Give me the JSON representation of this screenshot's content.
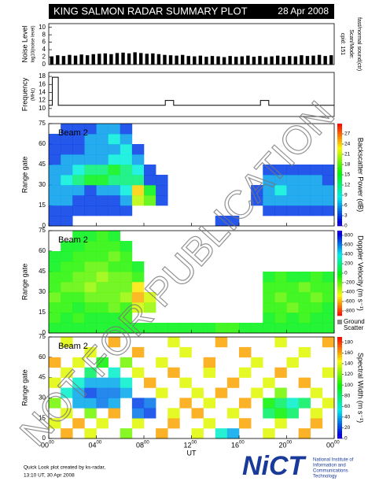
{
  "header": {
    "title": "KING SALMON RADAR SUMMARY PLOT",
    "date": "28 Apr 2008"
  },
  "chart_data": [
    {
      "type": "bar",
      "ylabel": "Noise Level",
      "ylabel_sub": "log10(noise level)",
      "right_labels": [
        "Scan/Mode:",
        "fast/normal sound(ctr)",
        "cpid: 151"
      ],
      "color": "#000000",
      "xlim": [
        0,
        24
      ],
      "ylim": [
        0,
        11
      ],
      "yticks": [
        0,
        2,
        4,
        6,
        8,
        10
      ],
      "x": [
        0.25,
        0.75,
        1.25,
        1.75,
        2.25,
        2.75,
        3.25,
        3.75,
        4.25,
        4.75,
        5.25,
        5.75,
        6.25,
        6.75,
        7.25,
        7.75,
        8.25,
        8.75,
        9.25,
        9.75,
        10.25,
        10.75,
        11.25,
        11.75,
        12.25,
        12.75,
        13.25,
        13.75,
        14.25,
        14.75,
        15.25,
        15.75,
        16.25,
        16.75,
        17.25,
        17.75,
        18.25,
        18.75,
        19.25,
        19.75,
        20.25,
        20.75,
        21.25,
        21.75,
        22.25,
        22.75,
        23.25,
        23.75
      ],
      "values": [
        2.2,
        2.5,
        2.3,
        2.6,
        2.4,
        2.7,
        2.5,
        2.8,
        2.9,
        3.0,
        2.8,
        3.1,
        3.2,
        3.0,
        3.3,
        3.1,
        2.9,
        3.0,
        2.8,
        2.6,
        2.5,
        2.4,
        2.6,
        2.3,
        2.2,
        2.4,
        2.1,
        2.3,
        2.2,
        2.0,
        2.3,
        2.1,
        2.2,
        2.4,
        2.1,
        2.3,
        2.0,
        2.2,
        2.4,
        2.1,
        2.3,
        2.2,
        2.5,
        2.3,
        2.4,
        2.6,
        2.3,
        2.5
      ]
    },
    {
      "type": "line",
      "ylabel": "Frequency",
      "ylabel_sub": "(MHz)",
      "color": "#000000",
      "xlim": [
        0,
        24
      ],
      "ylim": [
        8,
        19
      ],
      "yticks": [
        10,
        12,
        14,
        16,
        18
      ],
      "x": [
        0,
        0.3,
        0.3,
        0.8,
        0.8,
        9.8,
        9.8,
        10.5,
        10.5,
        17.8,
        17.8,
        18.5,
        18.5,
        24
      ],
      "values": [
        10.8,
        10.8,
        17.8,
        17.8,
        10.8,
        10.8,
        12,
        12,
        10.8,
        10.8,
        12,
        12,
        10.8,
        10.8
      ]
    },
    {
      "type": "heatmap",
      "label": "Beam 2",
      "ylabel": "Range gate",
      "xlim": [
        0,
        24
      ],
      "ylim": [
        0,
        75
      ],
      "yticks": [
        0,
        15,
        30,
        45,
        60,
        75
      ],
      "xticks": [
        0,
        4,
        8,
        12,
        16,
        20,
        24
      ],
      "x": [
        0,
        1,
        2,
        3,
        4,
        5,
        6,
        7,
        8,
        9,
        10,
        11,
        12,
        13,
        14,
        15,
        16,
        17,
        18,
        19,
        20,
        21,
        22,
        23
      ],
      "y": [
        0,
        7.5,
        15,
        22.5,
        30,
        37.5,
        45,
        52.5,
        60,
        67.5
      ],
      "values": [
        [
          3,
          3,
          null,
          null,
          null,
          null,
          null,
          null,
          null,
          null,
          null,
          null,
          null,
          null,
          3,
          3,
          null,
          null,
          null,
          null,
          null,
          null,
          null,
          null
        ],
        [
          3,
          3,
          3,
          3,
          3,
          3,
          3,
          null,
          null,
          null,
          null,
          null,
          null,
          null,
          null,
          null,
          null,
          null,
          3,
          3,
          3,
          3,
          3,
          3
        ],
        [
          6,
          6,
          3,
          3,
          3,
          3,
          6,
          21,
          18,
          3,
          null,
          null,
          null,
          null,
          null,
          null,
          null,
          3,
          6,
          6,
          6,
          6,
          6,
          6
        ],
        [
          6,
          6,
          6,
          3,
          6,
          6,
          9,
          24,
          15,
          3,
          null,
          null,
          null,
          null,
          null,
          null,
          null,
          3,
          6,
          9,
          6,
          6,
          6,
          6
        ],
        [
          6,
          9,
          12,
          15,
          15,
          12,
          12,
          12,
          3,
          3,
          null,
          null,
          null,
          null,
          null,
          null,
          null,
          null,
          6,
          6,
          6,
          6,
          6,
          3
        ],
        [
          6,
          6,
          9,
          12,
          12,
          15,
          12,
          9,
          3,
          null,
          null,
          null,
          null,
          null,
          null,
          null,
          null,
          null,
          3,
          3,
          3,
          3,
          3,
          3
        ],
        [
          3,
          6,
          6,
          6,
          6,
          9,
          9,
          6,
          null,
          null,
          null,
          null,
          null,
          null,
          null,
          null,
          null,
          null,
          null,
          null,
          null,
          null,
          null,
          null
        ],
        [
          3,
          3,
          3,
          6,
          6,
          6,
          9,
          3,
          null,
          null,
          null,
          null,
          null,
          null,
          null,
          null,
          null,
          null,
          null,
          null,
          null,
          null,
          null,
          null
        ],
        [
          3,
          3,
          3,
          6,
          6,
          9,
          6,
          null,
          null,
          null,
          null,
          null,
          null,
          null,
          null,
          null,
          null,
          null,
          null,
          null,
          null,
          null,
          null,
          null
        ],
        [
          null,
          3,
          3,
          3,
          6,
          6,
          3,
          null,
          null,
          null,
          null,
          null,
          null,
          null,
          null,
          null,
          null,
          null,
          null,
          null,
          null,
          null,
          null,
          null
        ]
      ],
      "colorbar": {
        "label": "Backscatter Power (dB)",
        "clim": [
          0,
          30
        ],
        "reversed": false,
        "ticks": [
          0,
          3,
          6,
          9,
          12,
          15,
          18,
          21,
          24,
          27
        ]
      }
    },
    {
      "type": "heatmap",
      "label": "Beam 2",
      "ylabel": "Range gate",
      "xlim": [
        0,
        24
      ],
      "ylim": [
        0,
        75
      ],
      "yticks": [
        0,
        15,
        30,
        45,
        60,
        75
      ],
      "xticks": [
        0,
        4,
        8,
        12,
        16,
        20,
        24
      ],
      "x": [
        0,
        1,
        2,
        3,
        4,
        5,
        6,
        7,
        8,
        9,
        10,
        11,
        12,
        13,
        14,
        15,
        16,
        17,
        18,
        19,
        20,
        21,
        22,
        23
      ],
      "y": [
        0,
        7.5,
        15,
        22.5,
        30,
        37.5,
        45,
        52.5,
        60,
        67.5
      ],
      "values": [
        [
          0,
          0,
          0,
          0,
          0,
          0,
          0,
          0,
          0,
          0,
          0,
          0,
          0,
          0,
          -100,
          -100,
          0,
          0,
          0,
          0,
          0,
          0,
          0,
          0
        ],
        [
          -100,
          0,
          -100,
          0,
          0,
          0,
          -100,
          null,
          null,
          null,
          null,
          null,
          null,
          null,
          null,
          null,
          null,
          null,
          0,
          -100,
          0,
          -100,
          0,
          0
        ],
        [
          -100,
          -100,
          0,
          -100,
          -100,
          -200,
          -100,
          -400,
          -300,
          null,
          null,
          null,
          null,
          null,
          null,
          null,
          null,
          null,
          -100,
          -100,
          -200,
          -100,
          -100,
          0
        ],
        [
          -200,
          -100,
          -100,
          -200,
          -200,
          -200,
          -300,
          -600,
          -400,
          null,
          null,
          null,
          null,
          null,
          null,
          null,
          null,
          null,
          -100,
          -200,
          -100,
          -100,
          -200,
          -100
        ],
        [
          -100,
          -200,
          -200,
          -300,
          -200,
          -200,
          -200,
          -500,
          null,
          null,
          null,
          null,
          null,
          null,
          null,
          null,
          null,
          null,
          -100,
          -100,
          -100,
          -200,
          -100,
          -100
        ],
        [
          -100,
          -100,
          -200,
          -200,
          -300,
          -200,
          -200,
          -100,
          null,
          null,
          null,
          null,
          null,
          null,
          null,
          null,
          null,
          null,
          0,
          -100,
          0,
          0,
          -100,
          0
        ],
        [
          0,
          -100,
          -100,
          -200,
          -200,
          -100,
          -100,
          0,
          null,
          null,
          null,
          null,
          null,
          null,
          null,
          null,
          null,
          null,
          null,
          null,
          null,
          null,
          null,
          null
        ],
        [
          0,
          0,
          -100,
          -100,
          -100,
          -200,
          -100,
          null,
          null,
          null,
          null,
          null,
          null,
          null,
          null,
          null,
          null,
          null,
          null,
          null,
          null,
          null,
          null,
          null
        ],
        [
          null,
          0,
          0,
          -100,
          -100,
          -100,
          0,
          null,
          null,
          null,
          null,
          null,
          null,
          null,
          null,
          null,
          null,
          null,
          null,
          null,
          null,
          null,
          null,
          null
        ],
        [
          null,
          null,
          0,
          0,
          -100,
          0,
          null,
          null,
          null,
          null,
          null,
          null,
          null,
          null,
          null,
          null,
          null,
          null,
          null,
          null,
          null,
          null,
          null,
          null
        ]
      ],
      "colorbar": {
        "label": "Doppler Velocity (m s⁻¹)",
        "clim": [
          -900,
          900
        ],
        "reversed": true,
        "ticks": [
          800,
          600,
          400,
          200,
          0,
          -200,
          -400,
          -600,
          -800
        ],
        "ground_scatter": {
          "label": [
            "Ground",
            "Scatter"
          ],
          "color": "#8c8c8c"
        }
      }
    },
    {
      "type": "heatmap",
      "label": "Beam 2",
      "ylabel": "Range gate",
      "xlim": [
        0,
        24
      ],
      "ylim": [
        0,
        75
      ],
      "yticks": [
        0,
        15,
        30,
        45,
        60,
        75
      ],
      "xticks": [
        {
          "value": 0,
          "label": "00",
          "sup": "00"
        },
        {
          "value": 4,
          "label": "04",
          "sup": "00"
        },
        {
          "value": 8,
          "label": "08",
          "sup": "00"
        },
        {
          "value": 12,
          "label": "12",
          "sup": "00"
        },
        {
          "value": 16,
          "label": "16",
          "sup": "00"
        },
        {
          "value": 20,
          "label": "20",
          "sup": "00"
        },
        {
          "value": 24,
          "label": "00",
          "sup": "00"
        }
      ],
      "xlabel": "UT",
      "x": [
        0,
        1,
        2,
        3,
        4,
        5,
        6,
        7,
        8,
        9,
        10,
        11,
        12,
        13,
        14,
        15,
        16,
        17,
        18,
        19,
        20,
        21,
        22,
        23
      ],
      "y": [
        0,
        7.5,
        15,
        22.5,
        30,
        37.5,
        45,
        52.5,
        60,
        67.5
      ],
      "values": [
        [
          null,
          160,
          null,
          140,
          null,
          null,
          120,
          null,
          null,
          160,
          null,
          null,
          140,
          null,
          60,
          40,
          null,
          null,
          140,
          null,
          null,
          160,
          null,
          null
        ],
        [
          140,
          null,
          160,
          null,
          140,
          null,
          null,
          140,
          null,
          null,
          160,
          null,
          null,
          140,
          null,
          null,
          160,
          null,
          null,
          140,
          null,
          null,
          160,
          null
        ],
        [
          null,
          140,
          null,
          120,
          null,
          160,
          null,
          30,
          20,
          null,
          140,
          null,
          160,
          null,
          null,
          140,
          null,
          null,
          80,
          100,
          80,
          null,
          140,
          null
        ],
        [
          120,
          null,
          40,
          40,
          30,
          40,
          null,
          20,
          30,
          null,
          null,
          160,
          null,
          140,
          null,
          null,
          160,
          null,
          100,
          80,
          60,
          80,
          null,
          140
        ],
        [
          null,
          60,
          40,
          20,
          30,
          30,
          40,
          null,
          null,
          140,
          null,
          null,
          140,
          null,
          160,
          null,
          null,
          140,
          null,
          120,
          null,
          null,
          140,
          null
        ],
        [
          140,
          null,
          60,
          40,
          40,
          40,
          60,
          null,
          160,
          null,
          null,
          140,
          null,
          null,
          null,
          160,
          null,
          null,
          140,
          null,
          null,
          160,
          null,
          null
        ],
        [
          null,
          140,
          null,
          80,
          null,
          60,
          null,
          140,
          null,
          null,
          160,
          null,
          null,
          140,
          null,
          null,
          140,
          null,
          null,
          160,
          null,
          null,
          null,
          140
        ],
        [
          160,
          null,
          140,
          null,
          100,
          null,
          120,
          null,
          null,
          140,
          null,
          null,
          null,
          160,
          null,
          null,
          null,
          140,
          null,
          null,
          140,
          null,
          null,
          null
        ],
        [
          null,
          null,
          null,
          140,
          null,
          null,
          null,
          160,
          null,
          null,
          null,
          140,
          null,
          null,
          null,
          null,
          160,
          null,
          null,
          null,
          null,
          140,
          null,
          null
        ],
        [
          null,
          140,
          null,
          null,
          null,
          160,
          null,
          null,
          null,
          null,
          140,
          null,
          null,
          null,
          160,
          null,
          null,
          null,
          null,
          140,
          null,
          null,
          null,
          160
        ]
      ],
      "colorbar": {
        "label": "Spectral Width (m s⁻¹)",
        "clim": [
          0,
          190
        ],
        "reversed": false,
        "ticks": [
          0,
          20,
          40,
          60,
          80,
          100,
          120,
          140,
          160,
          180
        ]
      }
    }
  ],
  "watermark": "NOT FOR PUBLICATION",
  "footer": {
    "credit": "Quick Look plot created by ks-radar,",
    "time": "13:10 UT, 30 Apr 2008"
  },
  "logo": {
    "name": "NiCT",
    "lines": [
      "National Institute of",
      "Information and",
      "Communications",
      "Technology"
    ]
  }
}
